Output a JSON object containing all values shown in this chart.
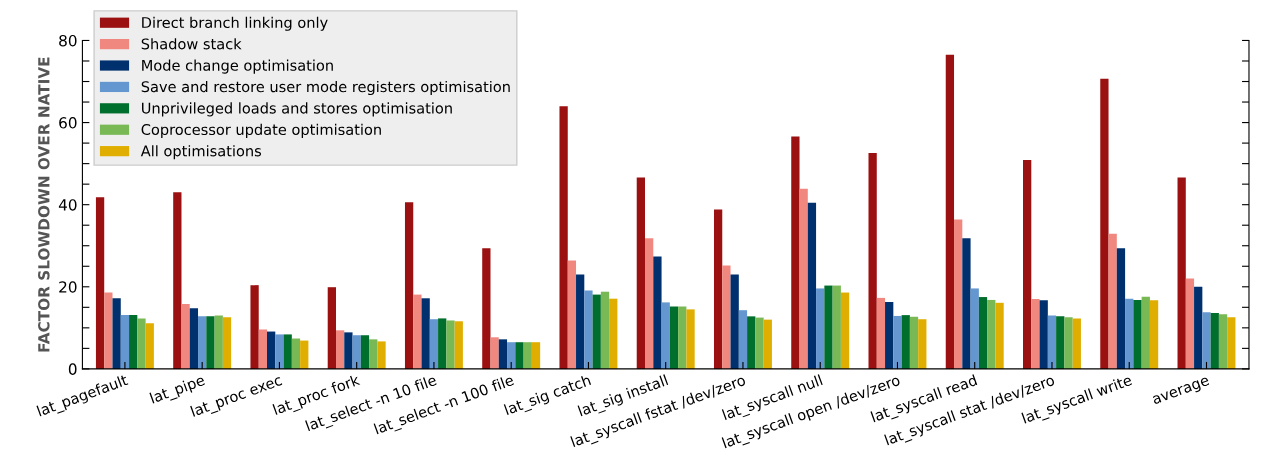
{
  "chart_data": {
    "type": "bar",
    "ylabel": "FACTOR SLOWDOWN OVER NATIVE",
    "categories": [
      "lat_pagefault",
      "lat_pipe",
      "lat_proc exec",
      "lat_proc fork",
      "lat_select -n 10 file",
      "lat_select -n 100 file",
      "lat_sig catch",
      "lat_sig install",
      "lat_syscall fstat /dev/zero",
      "lat_syscall null",
      "lat_syscall open /dev/zero",
      "lat_syscall read",
      "lat_syscall stat /dev/zero",
      "lat_syscall write",
      "average"
    ],
    "series": [
      {
        "name": "Direct branch linking only",
        "color": "#9b1111",
        "values": [
          41.8,
          43,
          20.4,
          19.9,
          40.6,
          29.4,
          64,
          46.6,
          38.8,
          56.6,
          52.6,
          76.5,
          50.9,
          70.7,
          46.6
        ]
      },
      {
        "name": "Shadow stack",
        "color": "#f08880",
        "values": [
          18.6,
          15.8,
          9.6,
          9.4,
          18.1,
          7.7,
          26.4,
          31.8,
          25.2,
          43.9,
          17.3,
          36.4,
          17.0,
          32.9,
          22.0
        ]
      },
      {
        "name": "Mode change optimisation",
        "color": "#00306e",
        "values": [
          17.2,
          14.8,
          9.1,
          8.9,
          17.2,
          7.2,
          23.0,
          27.4,
          23.0,
          40.5,
          16.3,
          31.8,
          16.7,
          29.4,
          20.0
        ]
      },
      {
        "name": "Save and restore user mode registers optimisation",
        "color": "#6497d0",
        "values": [
          13.1,
          12.8,
          8.4,
          8.2,
          12.1,
          6.5,
          19.1,
          16.2,
          14.3,
          19.6,
          12.9,
          19.6,
          13.0,
          17.1,
          13.8
        ]
      },
      {
        "name": "Unprivileged loads and stores optimisation",
        "color": "#006e2c",
        "values": [
          13.1,
          12.8,
          8.4,
          8.2,
          12.3,
          6.5,
          18.1,
          15.2,
          12.8,
          20.3,
          13.1,
          17.5,
          12.8,
          16.8,
          13.6
        ]
      },
      {
        "name": "Coprocessor update optimisation",
        "color": "#78b855",
        "values": [
          12.3,
          13.0,
          7.4,
          7.2,
          11.8,
          6.5,
          18.8,
          15.2,
          12.5,
          20.3,
          12.7,
          16.8,
          12.6,
          17.6,
          13.3
        ]
      },
      {
        "name": "All optimisations",
        "color": "#e0ae00",
        "values": [
          11.1,
          12.6,
          6.9,
          6.7,
          11.6,
          6.5,
          17.1,
          14.5,
          12.0,
          18.6,
          12.1,
          16.1,
          12.3,
          16.7,
          12.6
        ]
      }
    ],
    "ylim": [
      0,
      80
    ],
    "yticks": [
      0,
      {
        "value": 5,
        "label": null
      },
      {
        "value": 10,
        "label": null
      },
      {
        "value": 15,
        "label": null
      },
      20,
      {
        "value": 25,
        "label": null
      },
      {
        "value": 30,
        "label": null
      },
      {
        "value": 35,
        "label": null
      },
      40,
      {
        "value": 45,
        "label": null
      },
      {
        "value": 50,
        "label": null
      },
      {
        "value": 55,
        "label": null
      },
      60,
      {
        "value": 65,
        "label": null
      },
      {
        "value": 70,
        "label": null
      },
      {
        "value": 75,
        "label": null
      },
      80
    ],
    "grid": false,
    "legend": "top left"
  }
}
